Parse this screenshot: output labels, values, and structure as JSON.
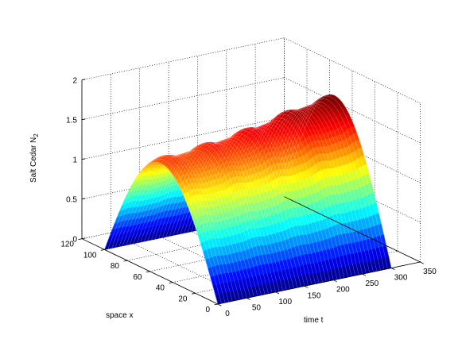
{
  "chart_data": {
    "type": "surface",
    "title": "",
    "xlabel": "time t",
    "ylabel": "space x",
    "zlabel": "Salt Cedar N",
    "zlabel_subscript": "2",
    "xlim": [
      0,
      350
    ],
    "ylim": [
      0,
      120
    ],
    "zlim": [
      0,
      2
    ],
    "xticks": [
      "0",
      "50",
      "100",
      "150",
      "200",
      "250",
      "300",
      "350"
    ],
    "yticks": [
      "0",
      "20",
      "40",
      "60",
      "80",
      "100",
      "120"
    ],
    "zticks": [
      "0",
      "0.5",
      "1",
      "1.5",
      "2"
    ],
    "grid": true,
    "colormap": "jet",
    "surface": {
      "t_range": [
        0,
        300
      ],
      "x_range": [
        0,
        100
      ],
      "profile": "N2 = A(t) * sin(pi * x / 100)",
      "t_samples": [
        0,
        25,
        50,
        75,
        100,
        125,
        150,
        175,
        200,
        225,
        250,
        275,
        300
      ],
      "amplitude": [
        1.43,
        1.44,
        1.46,
        1.48,
        1.5,
        1.53,
        1.56,
        1.59,
        1.63,
        1.68,
        1.72,
        1.75,
        1.78
      ]
    }
  }
}
